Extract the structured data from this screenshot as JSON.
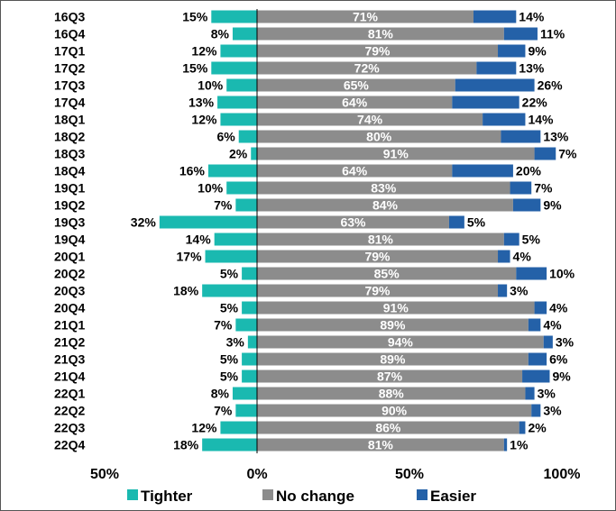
{
  "chart_data": {
    "type": "bar",
    "orientation": "horizontal",
    "stacked": true,
    "categories": [
      "16Q3",
      "16Q4",
      "17Q1",
      "17Q2",
      "17Q3",
      "17Q4",
      "18Q1",
      "18Q2",
      "18Q3",
      "18Q4",
      "19Q1",
      "19Q2",
      "19Q3",
      "19Q4",
      "20Q1",
      "20Q2",
      "20Q3",
      "20Q4",
      "21Q1",
      "21Q2",
      "21Q3",
      "21Q4",
      "22Q1",
      "22Q2",
      "22Q3",
      "22Q4"
    ],
    "series": [
      {
        "name": "Tighter",
        "color": "#1ab9b0",
        "direction": "negative",
        "values": [
          15,
          8,
          12,
          15,
          10,
          13,
          12,
          6,
          2,
          16,
          10,
          7,
          32,
          14,
          17,
          5,
          18,
          5,
          7,
          3,
          5,
          5,
          8,
          7,
          12,
          18
        ]
      },
      {
        "name": "No change",
        "color": "#8c8c8c",
        "direction": "positive",
        "values": [
          71,
          81,
          79,
          72,
          65,
          64,
          74,
          80,
          91,
          64,
          83,
          84,
          63,
          81,
          79,
          85,
          79,
          91,
          89,
          94,
          89,
          87,
          88,
          90,
          86,
          81
        ]
      },
      {
        "name": "Easier",
        "color": "#2461a8",
        "direction": "positive",
        "values": [
          14,
          11,
          9,
          13,
          26,
          22,
          14,
          13,
          7,
          20,
          7,
          9,
          5,
          5,
          4,
          10,
          3,
          4,
          4,
          3,
          6,
          9,
          3,
          3,
          2,
          1
        ]
      }
    ],
    "data_label_suffix": "%",
    "xlim": [
      -50,
      100
    ],
    "xticks": [
      {
        "value": -50,
        "label": "50%"
      },
      {
        "value": 0,
        "label": "0%"
      },
      {
        "value": 50,
        "label": "50%"
      },
      {
        "value": 100,
        "label": "100%"
      }
    ],
    "title": "",
    "xlabel": "",
    "ylabel": "",
    "grid": false,
    "legend_position": "bottom"
  }
}
